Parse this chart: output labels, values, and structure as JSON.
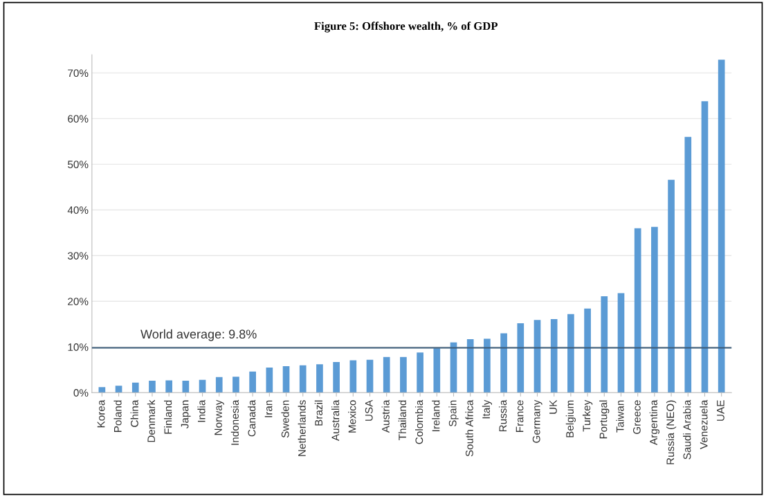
{
  "chart_data": {
    "type": "bar",
    "title": "Figure 5: Offshore wealth, % of GDP",
    "categories": [
      "Korea",
      "Poland",
      "China",
      "Denmark",
      "Finland",
      "Japan",
      "India",
      "Norway",
      "Indonesia",
      "Canada",
      "Iran",
      "Sweden",
      "Netherlands",
      "Brazil",
      "Australia",
      "Mexico",
      "USA",
      "Austria",
      "Thailand",
      "Colombia",
      "Ireland",
      "Spain",
      "South Africa",
      "Italy",
      "Russia",
      "France",
      "Germany",
      "UK",
      "Belgium",
      "Turkey",
      "Portugal",
      "Taiwan",
      "Greece",
      "Argentina",
      "Russia (NEO)",
      "Saudi Arabia",
      "Venezuela",
      "UAE"
    ],
    "values": [
      1.2,
      1.5,
      2.2,
      2.6,
      2.7,
      2.6,
      2.8,
      3.4,
      3.5,
      4.6,
      5.5,
      5.8,
      6.0,
      6.2,
      6.7,
      7.1,
      7.2,
      7.8,
      7.8,
      8.8,
      9.7,
      11.0,
      11.7,
      11.8,
      13.0,
      15.2,
      15.9,
      16.1,
      17.2,
      18.4,
      21.1,
      21.8,
      36.0,
      36.3,
      46.6,
      56.0,
      63.8,
      72.9
    ],
    "color": "#5b9bd5",
    "ylim": [
      0,
      74
    ],
    "yticks": [
      {
        "value": 0,
        "label": "0%"
      },
      {
        "value": 10,
        "label": "10%"
      },
      {
        "value": 20,
        "label": "20%"
      },
      {
        "value": 30,
        "label": "30%"
      },
      {
        "value": 40,
        "label": "40%"
      },
      {
        "value": 50,
        "label": "50%"
      },
      {
        "value": 60,
        "label": "60%"
      },
      {
        "value": 70,
        "label": "70%"
      }
    ],
    "grid": "y",
    "ref_lines": [
      {
        "axis": "y",
        "value": 9.8,
        "label": "World average: 9.8%",
        "color": "#3a5a78"
      }
    ]
  }
}
